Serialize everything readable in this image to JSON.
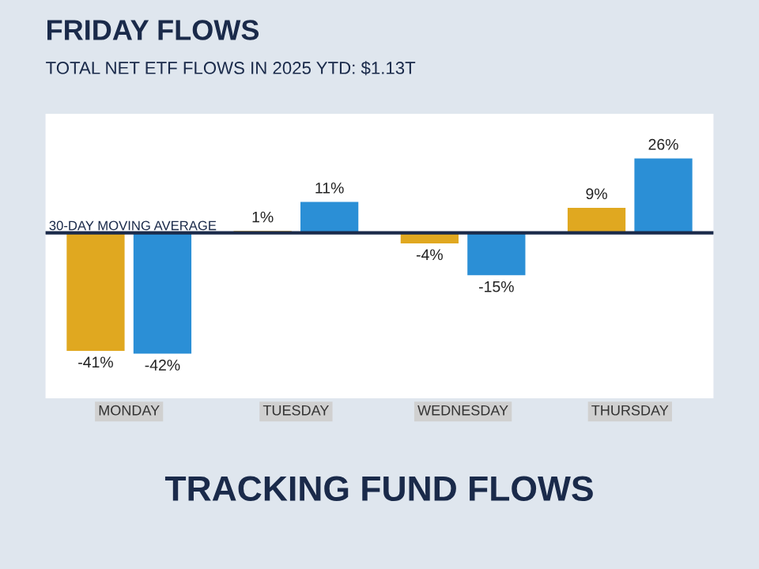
{
  "chart_data": {
    "type": "bar",
    "title": "FRIDAY FLOWS",
    "subtitle": "TOTAL NET ETF FLOWS IN 2025 YTD: $1.13T",
    "categories": [
      "MONDAY",
      "TUESDAY",
      "WEDNESDAY",
      "THURSDAY"
    ],
    "series": [
      {
        "color": "#e0a820",
        "values": [
          -41,
          1,
          -4,
          9
        ],
        "value_labels": [
          "-41%",
          "1%",
          "-4%",
          "9%"
        ]
      },
      {
        "color": "#2b8fd6",
        "values": [
          -42,
          11,
          -15,
          26
        ],
        "value_labels": [
          "-42%",
          "11%",
          "-15%",
          "26%"
        ]
      }
    ],
    "ref_lines": [
      {
        "axis": "y",
        "value": 0,
        "label": "30-DAY MOVING AVERAGE",
        "color": "#1a2a4a"
      }
    ],
    "annotations": [
      "TRACKING FUND FLOWS"
    ],
    "grid": false
  }
}
